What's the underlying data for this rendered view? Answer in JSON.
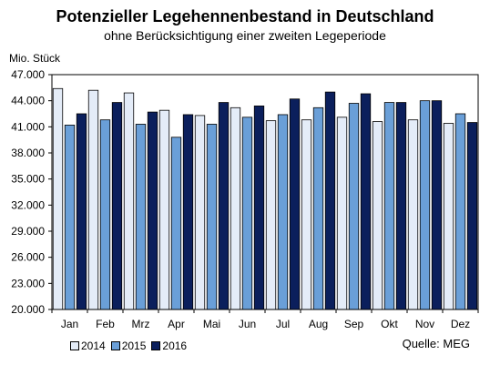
{
  "title": "Potenzieller Legehennenbestand in Deutschland",
  "subtitle": "ohne Berücksichtigung einer zweiten Legeperiode",
  "source": "Quelle: MEG",
  "chart_data": {
    "type": "bar",
    "unit_label": "Mio. Stück",
    "categories": [
      "Jan",
      "Feb",
      "Mrz",
      "Apr",
      "Mai",
      "Jun",
      "Jul",
      "Aug",
      "Sep",
      "Okt",
      "Nov",
      "Dez"
    ],
    "series": [
      {
        "name": "2014",
        "color": "#e4ecf8",
        "values": [
          45.4,
          45.2,
          44.9,
          42.9,
          42.3,
          43.2,
          41.7,
          41.8,
          42.1,
          41.6,
          41.8,
          41.4
        ]
      },
      {
        "name": "2015",
        "color": "#6a9fd8",
        "values": [
          41.2,
          41.8,
          41.3,
          39.8,
          41.3,
          42.1,
          42.4,
          43.2,
          43.7,
          43.8,
          44.0,
          42.5
        ]
      },
      {
        "name": "2016",
        "color": "#0b1f5c",
        "values": [
          42.5,
          43.8,
          42.7,
          42.4,
          43.8,
          43.4,
          44.2,
          45.0,
          44.8,
          43.8,
          44.0,
          41.5
        ]
      }
    ],
    "ylim": [
      20.0,
      47.0
    ],
    "yticks": [
      "20.000",
      "23.000",
      "26.000",
      "29.000",
      "32.000",
      "35.000",
      "38.000",
      "41.000",
      "44.000",
      "47.000"
    ],
    "ytick_values": [
      20,
      23,
      26,
      29,
      32,
      35,
      38,
      41,
      44,
      47
    ],
    "grid": false,
    "legend_position": "bottom-left"
  }
}
